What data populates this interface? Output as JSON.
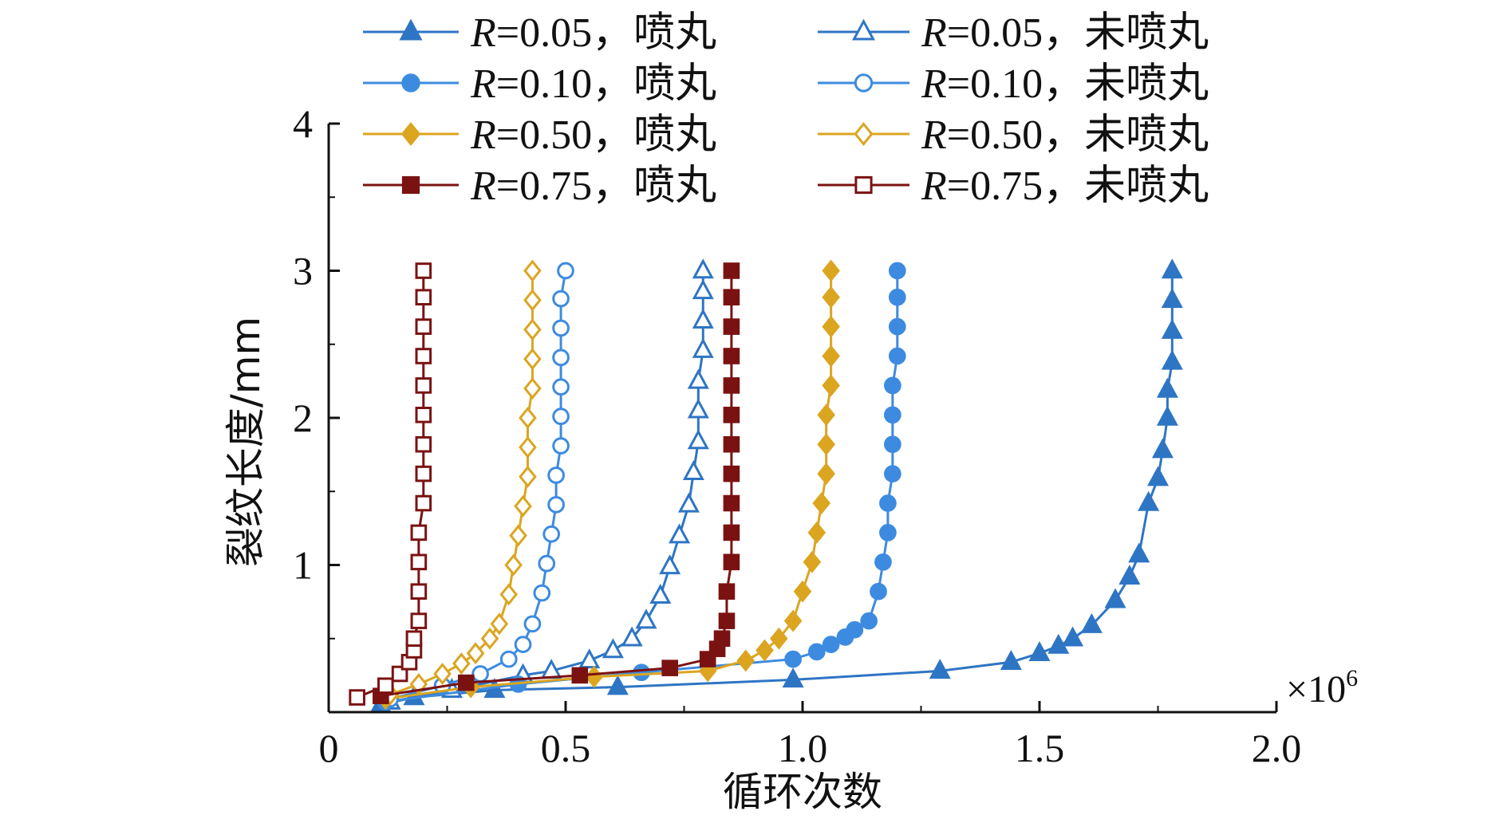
{
  "chart_data": {
    "type": "line",
    "xlabel": "循环次数",
    "ylabel": "裂纹长度/mm",
    "x_multiplier": "×10",
    "x_multiplier_exp": "6",
    "xlim": [
      0,
      2.0
    ],
    "ylim": [
      0,
      4
    ],
    "x_ticks": [
      "0",
      "0.5",
      "1.0",
      "1.5",
      "2.0"
    ],
    "y_ticks": [
      "1",
      "2",
      "3",
      "4"
    ],
    "grid": false,
    "legend_position": "top",
    "series": [
      {
        "name_italic": "R",
        "name_rest": "=0.05，喷丸",
        "color": "#2E75C4",
        "marker": "triangle",
        "filled": true,
        "points": [
          [
            0.11,
            0.05
          ],
          [
            0.18,
            0.1
          ],
          [
            0.35,
            0.15
          ],
          [
            0.61,
            0.17
          ],
          [
            0.98,
            0.22
          ],
          [
            1.29,
            0.28
          ],
          [
            1.44,
            0.34
          ],
          [
            1.5,
            0.4
          ],
          [
            1.54,
            0.45
          ],
          [
            1.57,
            0.5
          ],
          [
            1.61,
            0.59
          ],
          [
            1.66,
            0.76
          ],
          [
            1.69,
            0.92
          ],
          [
            1.71,
            1.07
          ],
          [
            1.73,
            1.42
          ],
          [
            1.75,
            1.59
          ],
          [
            1.76,
            1.78
          ],
          [
            1.77,
            2.0
          ],
          [
            1.77,
            2.19
          ],
          [
            1.78,
            2.38
          ],
          [
            1.78,
            2.59
          ],
          [
            1.78,
            2.8
          ],
          [
            1.78,
            3.0
          ]
        ]
      },
      {
        "name_italic": "R",
        "name_rest": "=0.05，未喷丸",
        "color": "#2E75C4",
        "marker": "triangle",
        "filled": false,
        "points": [
          [
            0.13,
            0.07
          ],
          [
            0.26,
            0.15
          ],
          [
            0.41,
            0.25
          ],
          [
            0.47,
            0.28
          ],
          [
            0.55,
            0.35
          ],
          [
            0.6,
            0.42
          ],
          [
            0.64,
            0.5
          ],
          [
            0.67,
            0.62
          ],
          [
            0.7,
            0.79
          ],
          [
            0.72,
            0.99
          ],
          [
            0.74,
            1.2
          ],
          [
            0.76,
            1.41
          ],
          [
            0.77,
            1.63
          ],
          [
            0.78,
            1.84
          ],
          [
            0.78,
            2.05
          ],
          [
            0.78,
            2.25
          ],
          [
            0.79,
            2.46
          ],
          [
            0.79,
            2.66
          ],
          [
            0.79,
            2.86
          ],
          [
            0.79,
            3.0
          ]
        ]
      },
      {
        "name_italic": "R",
        "name_rest": "=0.10，喷丸",
        "color": "#3D8BE0",
        "marker": "circle",
        "filled": true,
        "points": [
          [
            0.12,
            0.07
          ],
          [
            0.4,
            0.19
          ],
          [
            0.66,
            0.27
          ],
          [
            0.98,
            0.36
          ],
          [
            1.03,
            0.41
          ],
          [
            1.06,
            0.46
          ],
          [
            1.09,
            0.51
          ],
          [
            1.11,
            0.56
          ],
          [
            1.14,
            0.62
          ],
          [
            1.16,
            0.82
          ],
          [
            1.17,
            1.02
          ],
          [
            1.18,
            1.22
          ],
          [
            1.18,
            1.42
          ],
          [
            1.19,
            1.62
          ],
          [
            1.19,
            1.82
          ],
          [
            1.19,
            2.02
          ],
          [
            1.19,
            2.22
          ],
          [
            1.2,
            2.42
          ],
          [
            1.2,
            2.62
          ],
          [
            1.2,
            2.82
          ],
          [
            1.2,
            3.0
          ]
        ]
      },
      {
        "name_italic": "R",
        "name_rest": "=0.10，未喷丸",
        "color": "#3D8BE0",
        "marker": "circle",
        "filled": false,
        "points": [
          [
            0.13,
            0.09
          ],
          [
            0.24,
            0.18
          ],
          [
            0.32,
            0.26
          ],
          [
            0.38,
            0.36
          ],
          [
            0.41,
            0.46
          ],
          [
            0.43,
            0.6
          ],
          [
            0.45,
            0.81
          ],
          [
            0.46,
            1.01
          ],
          [
            0.47,
            1.21
          ],
          [
            0.48,
            1.41
          ],
          [
            0.48,
            1.61
          ],
          [
            0.49,
            1.81
          ],
          [
            0.49,
            2.01
          ],
          [
            0.49,
            2.21
          ],
          [
            0.49,
            2.41
          ],
          [
            0.49,
            2.61
          ],
          [
            0.49,
            2.81
          ],
          [
            0.5,
            3.0
          ]
        ]
      },
      {
        "name_italic": "R",
        "name_rest": "=0.50，喷丸",
        "color": "#DBA520",
        "marker": "diamond",
        "filled": true,
        "points": [
          [
            0.12,
            0.09
          ],
          [
            0.3,
            0.17
          ],
          [
            0.56,
            0.24
          ],
          [
            0.8,
            0.28
          ],
          [
            0.88,
            0.35
          ],
          [
            0.92,
            0.42
          ],
          [
            0.95,
            0.5
          ],
          [
            0.98,
            0.62
          ],
          [
            1.0,
            0.82
          ],
          [
            1.02,
            1.02
          ],
          [
            1.03,
            1.22
          ],
          [
            1.04,
            1.42
          ],
          [
            1.05,
            1.62
          ],
          [
            1.05,
            1.82
          ],
          [
            1.05,
            2.02
          ],
          [
            1.06,
            2.22
          ],
          [
            1.06,
            2.42
          ],
          [
            1.06,
            2.62
          ],
          [
            1.06,
            2.82
          ],
          [
            1.06,
            3.0
          ]
        ]
      },
      {
        "name_italic": "R",
        "name_rest": "=0.50，未喷丸",
        "color": "#DBA520",
        "marker": "diamond",
        "filled": false,
        "points": [
          [
            0.13,
            0.12
          ],
          [
            0.19,
            0.19
          ],
          [
            0.24,
            0.26
          ],
          [
            0.28,
            0.33
          ],
          [
            0.31,
            0.4
          ],
          [
            0.34,
            0.5
          ],
          [
            0.36,
            0.6
          ],
          [
            0.38,
            0.8
          ],
          [
            0.39,
            1.0
          ],
          [
            0.4,
            1.2
          ],
          [
            0.41,
            1.4
          ],
          [
            0.42,
            1.6
          ],
          [
            0.42,
            1.8
          ],
          [
            0.42,
            2.0
          ],
          [
            0.43,
            2.2
          ],
          [
            0.43,
            2.4
          ],
          [
            0.43,
            2.6
          ],
          [
            0.43,
            2.8
          ],
          [
            0.43,
            3.0
          ]
        ]
      },
      {
        "name_italic": "R",
        "name_rest": "=0.75，喷丸",
        "color": "#7B1212",
        "marker": "square",
        "filled": true,
        "points": [
          [
            0.11,
            0.11
          ],
          [
            0.29,
            0.2
          ],
          [
            0.53,
            0.25
          ],
          [
            0.72,
            0.3
          ],
          [
            0.8,
            0.36
          ],
          [
            0.82,
            0.43
          ],
          [
            0.83,
            0.5
          ],
          [
            0.84,
            0.62
          ],
          [
            0.84,
            0.82
          ],
          [
            0.85,
            1.02
          ],
          [
            0.85,
            1.22
          ],
          [
            0.85,
            1.42
          ],
          [
            0.85,
            1.62
          ],
          [
            0.85,
            1.82
          ],
          [
            0.85,
            2.02
          ],
          [
            0.85,
            2.22
          ],
          [
            0.85,
            2.42
          ],
          [
            0.85,
            2.62
          ],
          [
            0.85,
            2.82
          ],
          [
            0.85,
            3.0
          ]
        ]
      },
      {
        "name_italic": "R",
        "name_rest": "=0.75，未喷丸",
        "color": "#7B1212",
        "marker": "square",
        "filled": false,
        "points": [
          [
            0.06,
            0.1
          ],
          [
            0.12,
            0.18
          ],
          [
            0.15,
            0.26
          ],
          [
            0.17,
            0.34
          ],
          [
            0.18,
            0.42
          ],
          [
            0.18,
            0.5
          ],
          [
            0.19,
            0.62
          ],
          [
            0.19,
            0.82
          ],
          [
            0.19,
            1.02
          ],
          [
            0.19,
            1.22
          ],
          [
            0.2,
            1.42
          ],
          [
            0.2,
            1.62
          ],
          [
            0.2,
            1.82
          ],
          [
            0.2,
            2.02
          ],
          [
            0.2,
            2.22
          ],
          [
            0.2,
            2.42
          ],
          [
            0.2,
            2.62
          ],
          [
            0.2,
            2.82
          ],
          [
            0.2,
            3.0
          ]
        ]
      }
    ]
  }
}
